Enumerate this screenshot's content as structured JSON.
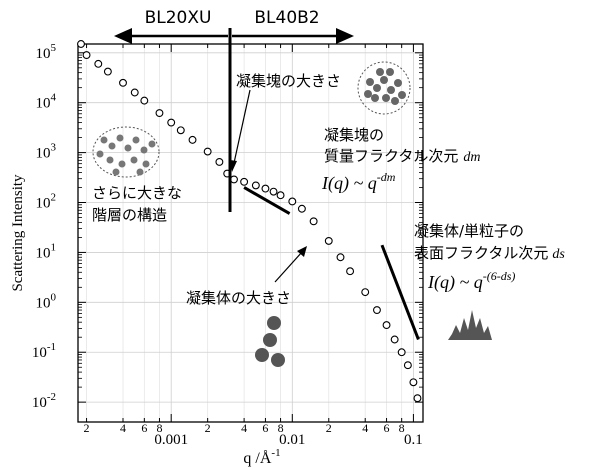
{
  "chart_data": {
    "type": "scatter",
    "xscale": "log",
    "yscale": "log",
    "xlim": [
      0.00017,
      0.12
    ],
    "ylim": [
      0.004,
      150000
    ],
    "xlabel_main": "q /Å",
    "xlabel_exp": "-1",
    "ylabel": "Scattering Intensity",
    "x_major_ticks": [
      {
        "value": 0.001,
        "label": "0.001"
      },
      {
        "value": 0.01,
        "label": "0.01"
      },
      {
        "value": 0.1,
        "label": "0.1"
      }
    ],
    "x_minor_ticks": [
      {
        "value": 0.0002,
        "label": "2"
      },
      {
        "value": 0.0004,
        "label": "4"
      },
      {
        "value": 0.0006,
        "label": "6"
      },
      {
        "value": 0.0008,
        "label": "8"
      },
      {
        "value": 0.002,
        "label": "2"
      },
      {
        "value": 0.004,
        "label": "4"
      },
      {
        "value": 0.006,
        "label": "6"
      },
      {
        "value": 0.008,
        "label": "8"
      },
      {
        "value": 0.02,
        "label": "2"
      },
      {
        "value": 0.04,
        "label": "4"
      },
      {
        "value": 0.06,
        "label": "6"
      },
      {
        "value": 0.08,
        "label": "8"
      }
    ],
    "y_ticks": [
      {
        "value": 0.01,
        "base": "10",
        "exp": "-2"
      },
      {
        "value": 0.1,
        "base": "10",
        "exp": "-1"
      },
      {
        "value": 1,
        "base": "10",
        "exp": "0"
      },
      {
        "value": 10,
        "base": "10",
        "exp": "1"
      },
      {
        "value": 100,
        "base": "10",
        "exp": "2"
      },
      {
        "value": 1000,
        "base": "10",
        "exp": "3"
      },
      {
        "value": 10000,
        "base": "10",
        "exp": "4"
      },
      {
        "value": 100000,
        "base": "10",
        "exp": "5"
      }
    ],
    "grid": true,
    "marker_color": "#000000",
    "series": [
      {
        "marker": "open-circle",
        "points": [
          [
            0.00018,
            150000
          ],
          [
            0.0002,
            90000
          ],
          [
            0.00025,
            60000
          ],
          [
            0.0003,
            42000
          ],
          [
            0.0004,
            25000
          ],
          [
            0.0005,
            16000
          ],
          [
            0.0006,
            11000
          ],
          [
            0.0008,
            6200
          ],
          [
            0.001,
            4000
          ],
          [
            0.0012,
            2800
          ],
          [
            0.0015,
            1800
          ],
          [
            0.002,
            1050
          ],
          [
            0.0025,
            650
          ],
          [
            0.0029,
            380
          ],
          [
            0.0033,
            290
          ],
          [
            0.004,
            260
          ],
          [
            0.005,
            220
          ],
          [
            0.006,
            190
          ],
          [
            0.007,
            165
          ],
          [
            0.008,
            140
          ],
          [
            0.01,
            105
          ],
          [
            0.012,
            75
          ],
          [
            0.015,
            42
          ],
          [
            0.02,
            17
          ],
          [
            0.025,
            8
          ],
          [
            0.03,
            4.2
          ],
          [
            0.04,
            1.6
          ],
          [
            0.05,
            0.7
          ],
          [
            0.06,
            0.35
          ],
          [
            0.07,
            0.18
          ],
          [
            0.08,
            0.1
          ],
          [
            0.09,
            0.055
          ],
          [
            0.1,
            0.025
          ],
          [
            0.108,
            0.012
          ]
        ]
      }
    ],
    "fit_lines": [
      {
        "x": [
          0.004,
          0.0095
        ],
        "y": [
          200,
          60
        ]
      },
      {
        "x": [
          0.055,
          0.11
        ],
        "y": [
          14,
          0.18
        ]
      }
    ],
    "divider_q": 0.003,
    "beamlines": {
      "left": "BL20XU",
      "right": "BL40B2"
    },
    "annotations": {
      "aggregate_size": "凝集塊の大きさ",
      "mass_fractal_line1": "凝集塊の",
      "mass_fractal_line2": "質量フラクタル次元",
      "mass_fractal_symbol": "dm",
      "mass_formula_main": "I(q) ~ q",
      "mass_formula_exp": "-dm",
      "hierarchy_line1": "さらに大きな",
      "hierarchy_line2": "階層の構造",
      "surface_fractal_line1": "凝集体/単粒子の",
      "surface_fractal_line2": "表面フラクタル次元",
      "surface_fractal_symbol": "ds",
      "surface_formula_main": "I(q) ~ q",
      "surface_formula_exp": "-(6-ds)",
      "aggregate_body_size": "凝集体の大きさ"
    }
  }
}
